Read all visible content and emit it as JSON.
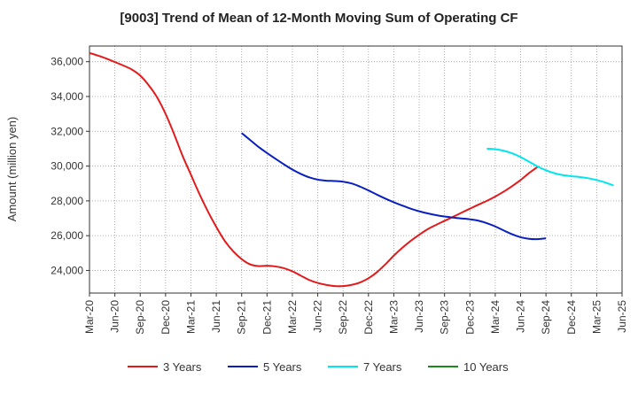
{
  "chart_data": {
    "type": "line",
    "title": "[9003]  Trend of Mean of 12-Month Moving Sum of Operating CF",
    "xlabel": "",
    "ylabel": "Amount (million yen)",
    "x_ticks": [
      "Mar-20",
      "Jun-20",
      "Sep-20",
      "Dec-20",
      "Mar-21",
      "Jun-21",
      "Sep-21",
      "Dec-21",
      "Mar-22",
      "Jun-22",
      "Sep-22",
      "Dec-22",
      "Mar-23",
      "Jun-23",
      "Sep-23",
      "Dec-23",
      "Mar-24",
      "Jun-24",
      "Sep-24",
      "Dec-24",
      "Mar-25",
      "Jun-25"
    ],
    "y_ticks": [
      24000,
      26000,
      28000,
      30000,
      32000,
      34000,
      36000
    ],
    "y_tick_labels": [
      "24,000",
      "26,000",
      "28,000",
      "30,000",
      "32,000",
      "34,000",
      "36,000"
    ],
    "ylim": [
      22700,
      36900
    ],
    "grid": true,
    "legend_position": "bottom",
    "series": [
      {
        "name": "3 Years",
        "color": "#e31a1c",
        "values": [
          36500,
          36350,
          36180,
          35980,
          35780,
          35550,
          35200,
          34650,
          33950,
          33000,
          31850,
          30600,
          29500,
          28400,
          27400,
          26500,
          25700,
          25100,
          24650,
          24350,
          24250,
          24270,
          24230,
          24130,
          23950,
          23700,
          23450,
          23280,
          23170,
          23100,
          23100,
          23170,
          23310,
          23550,
          23900,
          24350,
          24850,
          25300,
          25700,
          26050,
          26370,
          26620,
          26850,
          27080,
          27320,
          27550,
          27780,
          28000,
          28250,
          28530,
          28850,
          29200,
          29600,
          29950
        ]
      },
      {
        "name": "5 Years",
        "color": "#0a1fbf",
        "values": [
          null,
          null,
          null,
          null,
          null,
          null,
          null,
          null,
          null,
          null,
          null,
          null,
          null,
          null,
          null,
          null,
          null,
          null,
          31900,
          31500,
          31100,
          30750,
          30420,
          30100,
          29800,
          29550,
          29350,
          29220,
          29160,
          29140,
          29100,
          29000,
          28820,
          28600,
          28360,
          28130,
          27920,
          27730,
          27550,
          27400,
          27280,
          27180,
          27100,
          27040,
          26990,
          26940,
          26860,
          26720,
          26530,
          26300,
          26080,
          25910,
          25820,
          25800,
          25850
        ]
      },
      {
        "name": "7 Years",
        "color": "#00e5ee",
        "values": [
          null,
          null,
          null,
          null,
          null,
          null,
          null,
          null,
          null,
          null,
          null,
          null,
          null,
          null,
          null,
          null,
          null,
          null,
          null,
          null,
          null,
          null,
          null,
          null,
          null,
          null,
          null,
          null,
          null,
          null,
          null,
          null,
          null,
          null,
          null,
          null,
          null,
          null,
          null,
          null,
          null,
          null,
          null,
          null,
          null,
          null,
          null,
          31000,
          30970,
          30880,
          30730,
          30520,
          30250,
          29980,
          29760,
          29590,
          29480,
          29420,
          29370,
          29300,
          29200,
          29060,
          28880
        ]
      },
      {
        "name": "10 Years",
        "color": "#1a8a1a",
        "values": []
      }
    ]
  }
}
